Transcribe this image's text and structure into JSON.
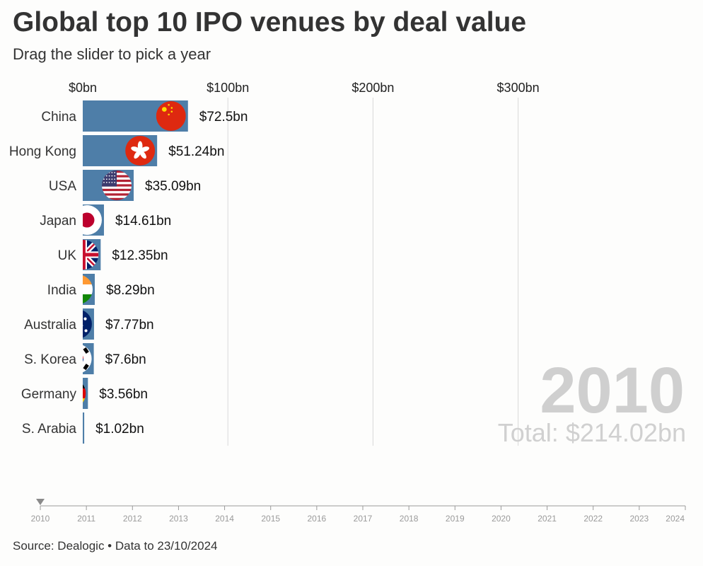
{
  "title": "Global top 10 IPO venues by deal value",
  "subtitle": "Drag the slider to pick a year",
  "source": "Source: Dealogic • Data to 23/10/2024",
  "colors": {
    "bar": "#4e7ea8",
    "grid": "#d9d9d9",
    "watermark": "#cfcfcf",
    "slider_line": "#9a9a9a"
  },
  "chart_data": {
    "type": "bar",
    "orientation": "horizontal",
    "title": "Global top 10 IPO venues by deal value",
    "year": "2010",
    "total_label": "Total: $214.02bn",
    "xlim": [
      0,
      300
    ],
    "ticks": [
      {
        "value": 0,
        "label": "$0bn"
      },
      {
        "value": 100,
        "label": "$100bn"
      },
      {
        "value": 200,
        "label": "$200bn"
      },
      {
        "value": 300,
        "label": "$300bn"
      }
    ],
    "categories": [
      "China",
      "Hong Kong",
      "USA",
      "Japan",
      "UK",
      "India",
      "Australia",
      "S. Korea",
      "Germany",
      "S. Arabia"
    ],
    "values": [
      72.5,
      51.24,
      35.09,
      14.61,
      12.35,
      8.29,
      7.77,
      7.6,
      3.56,
      1.02
    ],
    "value_labels": [
      "$72.5bn",
      "$51.24bn",
      "$35.09bn",
      "$14.61bn",
      "$12.35bn",
      "$8.29bn",
      "$7.77bn",
      "$7.6bn",
      "$3.56bn",
      "$1.02bn"
    ],
    "flags": [
      "china-flag-icon",
      "hong-kong-flag-icon",
      "usa-flag-icon",
      "japan-flag-icon",
      "uk-flag-icon",
      "india-flag-icon",
      "australia-flag-icon",
      "south-korea-flag-icon",
      "germany-flag-icon",
      "saudi-arabia-flag-icon"
    ],
    "legend": "none"
  },
  "slider": {
    "years": [
      "2010",
      "2011",
      "2012",
      "2013",
      "2014",
      "2015",
      "2016",
      "2017",
      "2018",
      "2019",
      "2020",
      "2021",
      "2022",
      "2023",
      "2024"
    ],
    "selected": "2010"
  }
}
